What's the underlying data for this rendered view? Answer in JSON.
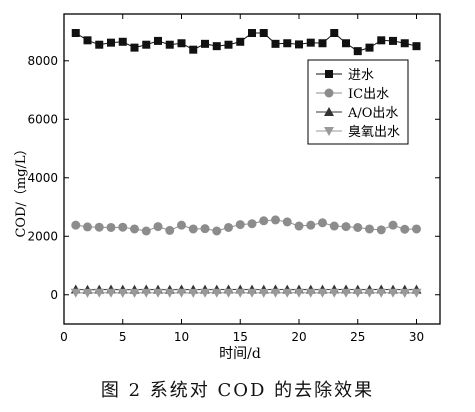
{
  "caption": "图 2  系统对 COD 的去除效果",
  "chart_data": {
    "type": "scatter",
    "xlabel": "时间/d",
    "ylabel": "COD/（mg/L）",
    "xlim": [
      0,
      32
    ],
    "ylim": [
      -1000,
      9600
    ],
    "xticks": [
      0,
      5,
      10,
      15,
      20,
      25,
      30
    ],
    "yticks": [
      0,
      2000,
      4000,
      6000,
      8000
    ],
    "x": [
      1,
      2,
      3,
      4,
      5,
      6,
      7,
      8,
      9,
      10,
      11,
      12,
      13,
      14,
      15,
      16,
      17,
      18,
      19,
      20,
      21,
      22,
      23,
      24,
      25,
      26,
      27,
      28,
      29,
      30
    ],
    "legend_position": "right",
    "grid": false,
    "series": [
      {
        "name": "进水",
        "marker": "square",
        "color": "#111111",
        "values": [
          8950,
          8700,
          8550,
          8620,
          8650,
          8450,
          8550,
          8680,
          8550,
          8600,
          8380,
          8580,
          8500,
          8550,
          8650,
          8950,
          8950,
          8580,
          8600,
          8560,
          8620,
          8600,
          8950,
          8600,
          8330,
          8450,
          8700,
          8680,
          8600,
          8500
        ]
      },
      {
        "name": "IC出水",
        "marker": "circle",
        "color": "#8c8c8c",
        "values": [
          2380,
          2320,
          2310,
          2300,
          2310,
          2250,
          2180,
          2330,
          2200,
          2380,
          2250,
          2260,
          2180,
          2300,
          2400,
          2430,
          2530,
          2560,
          2490,
          2350,
          2380,
          2460,
          2350,
          2330,
          2300,
          2250,
          2220,
          2380,
          2240,
          2250
        ]
      },
      {
        "name": "A/O出水",
        "marker": "triangle-up",
        "color": "#333333",
        "values": [
          180,
          170,
          175,
          180,
          175,
          170,
          178,
          176,
          172,
          180,
          174,
          176,
          175,
          178,
          180,
          176,
          174,
          178,
          176,
          180,
          175,
          177,
          180,
          178,
          175,
          176,
          178,
          176,
          175,
          177
        ]
      },
      {
        "name": "臭氧出水",
        "marker": "triangle-down",
        "color": "#999999",
        "values": [
          70,
          65,
          68,
          70,
          66,
          64,
          70,
          68,
          65,
          70,
          66,
          68,
          67,
          70,
          69,
          68,
          66,
          70,
          68,
          70,
          67,
          68,
          70,
          69,
          67,
          68,
          70,
          68,
          66,
          68
        ]
      }
    ]
  }
}
